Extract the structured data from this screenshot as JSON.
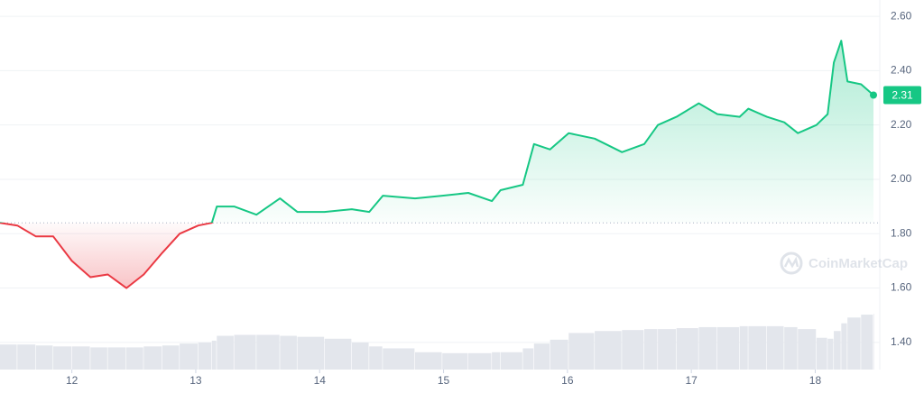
{
  "chart_data": {
    "type": "line",
    "x": [
      11.42,
      11.56,
      11.71,
      11.85,
      12.0,
      12.15,
      12.29,
      12.44,
      12.58,
      12.73,
      12.87,
      13.02,
      13.13,
      13.17,
      13.31,
      13.49,
      13.68,
      13.82,
      14.04,
      14.26,
      14.4,
      14.51,
      14.77,
      14.99,
      15.2,
      15.39,
      15.46,
      15.64,
      15.73,
      15.86,
      16.01,
      16.22,
      16.44,
      16.62,
      16.73,
      16.88,
      17.06,
      17.21,
      17.39,
      17.46,
      17.61,
      17.75,
      17.86,
      18.01,
      18.1,
      18.15,
      18.21,
      18.26,
      18.37,
      18.47
    ],
    "series": [
      {
        "color": "#16c784",
        "values": [
          1.84,
          1.83,
          1.79,
          1.79,
          1.7,
          1.64,
          1.65,
          1.6,
          1.65,
          1.73,
          1.8,
          1.83,
          1.84,
          1.9,
          1.9,
          1.87,
          1.93,
          1.88,
          1.88,
          1.89,
          1.88,
          1.94,
          1.93,
          1.94,
          1.95,
          1.92,
          1.96,
          1.98,
          2.13,
          2.11,
          2.17,
          2.15,
          2.1,
          2.13,
          2.2,
          2.23,
          2.28,
          2.24,
          2.23,
          2.26,
          2.23,
          2.21,
          2.17,
          2.2,
          2.24,
          2.43,
          2.51,
          2.36,
          2.35,
          2.31
        ]
      }
    ],
    "down_color": "#ea3943",
    "baseline": 1.84,
    "volume": [
      26,
      26,
      25,
      24,
      24,
      23,
      23,
      23,
      24,
      25,
      27,
      28,
      30,
      35,
      36,
      36,
      35,
      34,
      32,
      28,
      24,
      22,
      18,
      17,
      17,
      18,
      18,
      22,
      27,
      31,
      38,
      40,
      41,
      42,
      42,
      43,
      44,
      44,
      45,
      45,
      45,
      44,
      42,
      33,
      32,
      40,
      48,
      54,
      57,
      58
    ],
    "xlim": [
      11.42,
      18.47
    ],
    "xticks": [
      12,
      13,
      14,
      15,
      16,
      17,
      18
    ],
    "ylim": [
      1.3,
      2.66
    ],
    "yticks": [
      {
        "value": 1.4,
        "label": "1.40"
      },
      {
        "value": 1.6,
        "label": "1.60"
      },
      {
        "value": 1.8,
        "label": "1.80"
      },
      {
        "value": 2.0,
        "label": "2.00"
      },
      {
        "value": 2.2,
        "label": "2.20"
      },
      {
        "value": 2.4,
        "label": "2.40"
      },
      {
        "value": 2.6,
        "label": "2.60"
      }
    ],
    "grid": true,
    "watermark": "CoinMarketCap"
  }
}
